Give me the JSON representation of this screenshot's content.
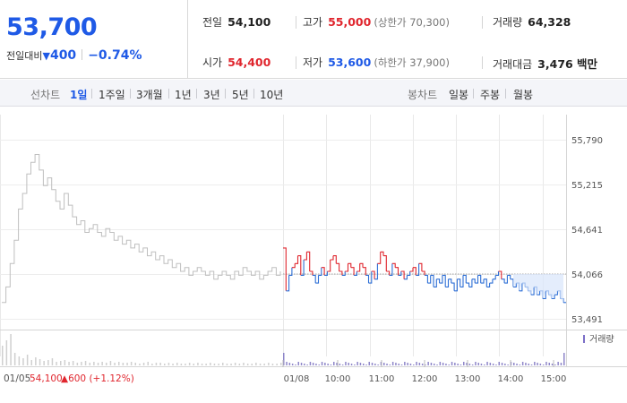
{
  "quote": {
    "price": "53,700",
    "change_label": "전일대비",
    "change_arrow": "▼",
    "change_value": "400",
    "change_rate": "−0.74%"
  },
  "stats": {
    "prev_close": {
      "label": "전일",
      "value": "54,100"
    },
    "high": {
      "label": "고가",
      "value": "55,000",
      "sub": "(상한가 70,300)"
    },
    "volume": {
      "label": "거래량",
      "value": "64,328"
    },
    "open": {
      "label": "시가",
      "value": "54,400"
    },
    "low": {
      "label": "저가",
      "value": "53,600",
      "sub": "(하한가 37,900)"
    },
    "amount": {
      "label": "거래대금",
      "value": "3,476 백만"
    }
  },
  "periods": {
    "line_label": "선차트",
    "line_items": [
      "1일",
      "1주일",
      "3개월",
      "1년",
      "3년",
      "5년",
      "10년"
    ],
    "active": "1일",
    "candle_label": "봉차트",
    "candle_items": [
      "일봉",
      "주봉",
      "월봉"
    ]
  },
  "chart_data": {
    "type": "line",
    "y_ticks": [
      "55,790",
      "55,215",
      "54,641",
      "54,066",
      "53,491"
    ],
    "ylim": [
      53491,
      55790
    ],
    "baseline": 54066,
    "baseline_note": "prev day close reference line",
    "x_ticks": [
      "01/08",
      "10:00",
      "11:00",
      "12:00",
      "13:00",
      "14:00",
      "15:00"
    ],
    "prev_day": {
      "date": "01/05",
      "close": "54,100",
      "change": "▲600 (+1.12%)",
      "values": [
        53700,
        53900,
        54200,
        54500,
        54900,
        55100,
        55350,
        55500,
        55600,
        55400,
        55200,
        55300,
        55150,
        55000,
        54900,
        55100,
        54950,
        54800,
        54700,
        54750,
        54600,
        54650,
        54700,
        54600,
        54550,
        54650,
        54600,
        54500,
        54550,
        54450,
        54500,
        54400,
        54450,
        54350,
        54400,
        54300,
        54350,
        54250,
        54300,
        54200,
        54250,
        54150,
        54200,
        54100,
        54150,
        54050,
        54100,
        54150,
        54100,
        54050,
        54100,
        54000,
        54050,
        54100,
        54050,
        54000,
        54100,
        54050,
        54150,
        54100,
        54050,
        54100,
        54000,
        54050,
        54100,
        54150,
        54050,
        54100
      ]
    },
    "series": [
      {
        "values": [
          54400,
          53850,
          54050,
          54150,
          54200,
          54300,
          54050,
          54250,
          54350,
          54100,
          54050,
          53950,
          54050,
          54150,
          54050,
          54100,
          54250,
          54300,
          54200,
          54100,
          54050,
          54100,
          54200,
          54150,
          54050,
          54100,
          54200,
          54150,
          54050,
          53950,
          54100,
          54000,
          54200,
          54350,
          54300,
          54100,
          54050,
          54200,
          54150,
          54050,
          54100,
          54000,
          54050,
          54100,
          54150,
          54050,
          54200,
          54100,
          54050,
          53950,
          54050,
          53900,
          54000,
          53950,
          54050,
          53900,
          54000,
          53950,
          53850,
          54000,
          53900,
          54050,
          53950,
          53900,
          54000,
          53950,
          54050,
          53950,
          54000,
          53900,
          53950,
          54000,
          54050,
          54100,
          54000,
          53950,
          54050,
          54000,
          53900,
          53950,
          53850,
          53950,
          53900,
          53850,
          53800,
          53900,
          53800,
          53850,
          53750,
          53850,
          53800,
          53750,
          53800,
          53850,
          53750,
          53700
        ]
      }
    ],
    "volume_label": "거래량"
  }
}
